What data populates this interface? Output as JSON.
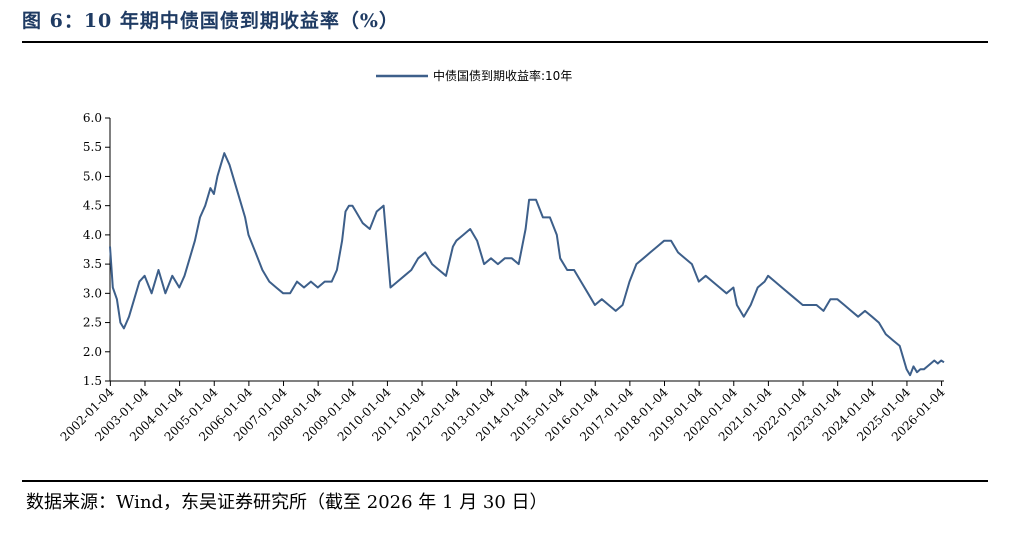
{
  "figure": {
    "title": "图 6：10 年期中债国债到期收益率（%）",
    "source": "数据来源：Wind，东吴证券研究所（截至 2026 年 1 月 30 日）"
  },
  "colors": {
    "line": "#3d5f8a",
    "title": "#1f3b63"
  },
  "chart_data": {
    "type": "line",
    "title": "",
    "xlabel": "",
    "ylabel": "",
    "ylim": [
      1.5,
      6.0
    ],
    "yticks": [
      "6.0",
      "5.5",
      "5.0",
      "4.5",
      "4.0",
      "3.5",
      "3.0",
      "2.5",
      "2.0",
      "1.5"
    ],
    "xticks": [
      "2002-01-04",
      "2003-01-04",
      "2004-01-04",
      "2005-01-04",
      "2006-01-04",
      "2007-01-04",
      "2008-01-04",
      "2009-01-04",
      "2010-01-04",
      "2011-01-04",
      "2012-01-04",
      "2013-01-04",
      "2014-01-04",
      "2015-01-04",
      "2016-01-04",
      "2017-01-04",
      "2018-01-04",
      "2019-01-04",
      "2020-01-04",
      "2021-01-04",
      "2022-01-04",
      "2023-01-04",
      "2024-01-04",
      "2025-01-04",
      "2026-01-04"
    ],
    "legend": "top-center",
    "series": [
      {
        "name": "中债国债到期收益率:10年",
        "x": [
          2002.0,
          2002.08,
          2002.2,
          2002.3,
          2002.4,
          2002.55,
          2002.7,
          2002.85,
          2003.0,
          2003.2,
          2003.4,
          2003.6,
          2003.8,
          2004.0,
          2004.15,
          2004.3,
          2004.45,
          2004.6,
          2004.75,
          2004.9,
          2005.0,
          2005.1,
          2005.2,
          2005.3,
          2005.45,
          2005.6,
          2005.75,
          2005.9,
          2006.0,
          2006.2,
          2006.4,
          2006.6,
          2006.8,
          2007.0,
          2007.2,
          2007.4,
          2007.6,
          2007.8,
          2008.0,
          2008.2,
          2008.4,
          2008.55,
          2008.7,
          2008.8,
          2008.9,
          2009.0,
          2009.1,
          2009.3,
          2009.5,
          2009.7,
          2009.9,
          2010.1,
          2010.3,
          2010.5,
          2010.7,
          2010.9,
          2011.1,
          2011.3,
          2011.5,
          2011.7,
          2011.9,
          2012.0,
          2012.2,
          2012.4,
          2012.6,
          2012.8,
          2013.0,
          2013.2,
          2013.4,
          2013.6,
          2013.8,
          2014.0,
          2014.1,
          2014.3,
          2014.5,
          2014.7,
          2014.9,
          2015.0,
          2015.2,
          2015.4,
          2015.6,
          2015.8,
          2016.0,
          2016.2,
          2016.4,
          2016.6,
          2016.8,
          2017.0,
          2017.2,
          2017.4,
          2017.6,
          2017.8,
          2018.0,
          2018.2,
          2018.4,
          2018.6,
          2018.8,
          2019.0,
          2019.2,
          2019.4,
          2019.6,
          2019.8,
          2020.0,
          2020.1,
          2020.3,
          2020.5,
          2020.7,
          2020.9,
          2021.0,
          2021.2,
          2021.4,
          2021.6,
          2021.8,
          2022.0,
          2022.2,
          2022.4,
          2022.6,
          2022.8,
          2023.0,
          2023.2,
          2023.4,
          2023.6,
          2023.8,
          2024.0,
          2024.2,
          2024.4,
          2024.6,
          2024.8,
          2025.0,
          2025.1,
          2025.2,
          2025.3,
          2025.4,
          2025.5,
          2025.6,
          2025.7,
          2025.8,
          2025.9,
          2026.0,
          2026.08
        ],
        "values": [
          3.8,
          3.1,
          2.9,
          2.5,
          2.4,
          2.6,
          2.9,
          3.2,
          3.3,
          3.0,
          3.4,
          3.0,
          3.3,
          3.1,
          3.3,
          3.6,
          3.9,
          4.3,
          4.5,
          4.8,
          4.7,
          5.0,
          5.2,
          5.4,
          5.2,
          4.9,
          4.6,
          4.3,
          4.0,
          3.7,
          3.4,
          3.2,
          3.1,
          3.0,
          3.0,
          3.2,
          3.1,
          3.2,
          3.1,
          3.2,
          3.2,
          3.4,
          3.9,
          4.4,
          4.5,
          4.5,
          4.4,
          4.2,
          4.1,
          4.4,
          4.5,
          3.1,
          3.2,
          3.3,
          3.4,
          3.6,
          3.7,
          3.5,
          3.4,
          3.3,
          3.8,
          3.9,
          4.0,
          4.1,
          3.9,
          3.5,
          3.6,
          3.5,
          3.6,
          3.6,
          3.5,
          4.1,
          4.6,
          4.6,
          4.3,
          4.3,
          4.0,
          3.6,
          3.4,
          3.4,
          3.2,
          3.0,
          2.8,
          2.9,
          2.8,
          2.7,
          2.8,
          3.2,
          3.5,
          3.6,
          3.7,
          3.8,
          3.9,
          3.9,
          3.7,
          3.6,
          3.5,
          3.2,
          3.3,
          3.2,
          3.1,
          3.0,
          3.1,
          2.8,
          2.6,
          2.8,
          3.1,
          3.2,
          3.3,
          3.2,
          3.1,
          3.0,
          2.9,
          2.8,
          2.8,
          2.8,
          2.7,
          2.9,
          2.9,
          2.8,
          2.7,
          2.6,
          2.7,
          2.6,
          2.5,
          2.3,
          2.2,
          2.1,
          1.7,
          1.6,
          1.75,
          1.65,
          1.7,
          1.7,
          1.75,
          1.8,
          1.85,
          1.8,
          1.85,
          1.82
        ]
      }
    ]
  }
}
